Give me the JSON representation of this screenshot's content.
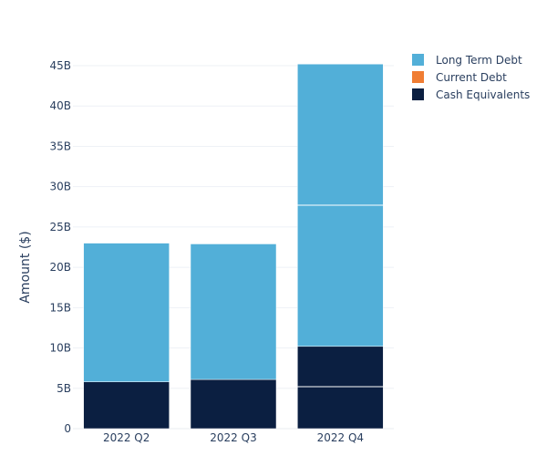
{
  "chart_data": {
    "type": "bar",
    "stacked": true,
    "categories": [
      "2022 Q2",
      "2022 Q3",
      "2022 Q4"
    ],
    "ylabel": "Amount ($)",
    "ylim": [
      0,
      45
    ],
    "yticks": [
      0,
      5,
      10,
      15,
      20,
      25,
      30,
      35,
      40,
      45
    ],
    "ytick_labels": [
      "0",
      "5B",
      "10B",
      "15B",
      "20B",
      "25B",
      "30B",
      "35B",
      "40B",
      "45B"
    ],
    "legend_position": "top-right",
    "gridlines": true,
    "series": [
      {
        "name": "Cash Equivalents",
        "color": "#0b1f41",
        "values": [
          5.8,
          6.1,
          10.2
        ]
      },
      {
        "name": "Current Debt",
        "color": "#f07d33",
        "values": [
          0,
          0,
          0
        ]
      },
      {
        "name": "Long Term Debt",
        "color": "#52afd8",
        "values": [
          17.2,
          16.8,
          35.0
        ]
      }
    ],
    "segment_breaks": [
      [],
      [],
      [
        5.2,
        27.7
      ]
    ],
    "legend_order": [
      "Long Term Debt",
      "Current Debt",
      "Cash Equivalents"
    ]
  }
}
